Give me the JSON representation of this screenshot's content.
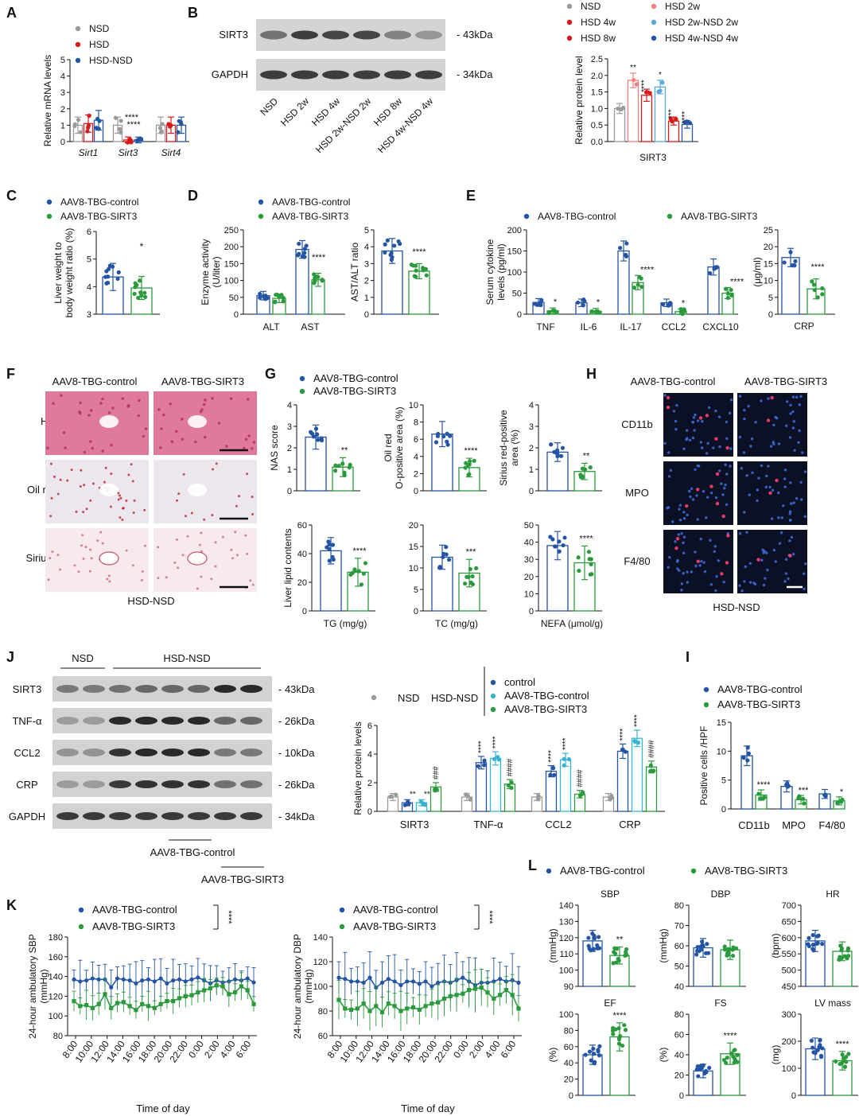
{
  "colors": {
    "nsd": "#9a9a9a",
    "hsd": "#d7191c",
    "hsd_nsd": "#2455a4",
    "control_blue": "#2455a4",
    "sirt3_green": "#2a9a3c",
    "hsd2w_pink": "#f08080",
    "hsd2w_nsd_lightblue": "#5aa9dc",
    "cyan": "#38b3cf",
    "he_stain": "#e07a9a",
    "oilred_bg": "#ece6ee",
    "sirius_bg": "#f6eaec",
    "if_bg": "#0b1024"
  },
  "panels": {
    "A": {
      "label": "A",
      "legend": [
        "NSD",
        "HSD",
        "HSD-NSD"
      ],
      "ylabel": "Relative mRNA  levels",
      "chart_data": {
        "type": "bar",
        "categories": [
          "Sirt1",
          "Sirt3",
          "Sirt4"
        ],
        "series": [
          {
            "name": "NSD",
            "values": [
              1.0,
              1.0,
              1.0
            ]
          },
          {
            "name": "HSD",
            "values": [
              1.1,
              0.1,
              1.0
            ]
          },
          {
            "name": "HSD-NSD",
            "values": [
              1.3,
              0.1,
              1.0
            ]
          }
        ],
        "ylim": [
          0,
          5
        ],
        "yticks": [
          "0",
          "1",
          "2",
          "3",
          "4",
          "5"
        ],
        "annotations": [
          "****",
          "****"
        ]
      }
    },
    "B": {
      "label": "B",
      "blot": {
        "rows": [
          "SIRT3",
          "GAPDH"
        ],
        "sizes": [
          "43kDa",
          "34kDa"
        ],
        "lanes": [
          "NSD",
          "HSD 2w",
          "HSD 4w",
          "HSD 2w-NSD 2w",
          "HSD 8w",
          "HSD 4w-NSD 4w"
        ]
      },
      "legend": [
        "NSD",
        "HSD 2w",
        "HSD 4w",
        "HSD 2w-NSD 2w",
        "HSD 8w",
        "HSD 4w-NSD 4w"
      ],
      "ylabel": "Relative protein level",
      "chart_data": {
        "type": "bar",
        "categories": [
          "NSD",
          "HSD 2w",
          "HSD 4w",
          "HSD 2w-NSD 2w",
          "HSD 8w",
          "HSD 4w-NSD 4w"
        ],
        "values": [
          1.0,
          1.85,
          1.4,
          1.65,
          0.62,
          0.52
        ],
        "xlabel": "SIRT3",
        "ylim": [
          0,
          2.5
        ],
        "yticks": [
          "0.0",
          "0.5",
          "1.0",
          "1.5",
          "2.0",
          "2.5"
        ],
        "annotations": [
          "",
          "**",
          "****",
          "*",
          "***",
          "****"
        ]
      }
    },
    "C": {
      "label": "C",
      "legend": [
        "AAV8-TBG-control",
        "AAV8-TBG-SIRT3"
      ],
      "ylabel": [
        "Liver weight to",
        "body weight ratio (%)"
      ],
      "chart_data": {
        "type": "bar",
        "categories": [
          "AAV8-TBG-control",
          "AAV8-TBG-SIRT3"
        ],
        "values": [
          4.35,
          3.95
        ],
        "ylim": [
          3,
          6
        ],
        "yticks": [
          "3",
          "4",
          "5",
          "6"
        ],
        "annotation": "*"
      }
    },
    "D": {
      "label": "D",
      "legend": [
        "AAV8-TBG-control",
        "AAV8-TBG-SIRT3"
      ],
      "ylabel": [
        "Enzyme activity",
        "(U/liter)"
      ],
      "chart_data": [
        {
          "type": "bar",
          "categories": [
            "ALT",
            "AST"
          ],
          "series": [
            {
              "name": "AAV8-TBG-control",
              "values": [
                55,
                192
              ]
            },
            {
              "name": "AAV8-TBG-SIRT3",
              "values": [
                47,
                102
              ]
            }
          ],
          "ylim": [
            0,
            250
          ],
          "yticks": [
            "0",
            "50",
            "100",
            "150",
            "200",
            "250"
          ],
          "annotation": "****"
        },
        {
          "type": "bar",
          "categories": [
            "AAV8-TBG-control",
            "AAV8-TBG-SIRT3"
          ],
          "values": [
            3.75,
            2.55
          ],
          "ylabel": "AST/ALT ratio",
          "ylim": [
            0,
            5
          ],
          "yticks": [
            "0",
            "1",
            "2",
            "3",
            "4",
            "5"
          ],
          "annotation": "****"
        }
      ]
    },
    "E": {
      "label": "E",
      "legend": [
        "AAV8-TBG-control",
        "AAV8-TBG-SIRT3"
      ],
      "ylabel": [
        "Serum cytokine",
        "levels (pg/ml)"
      ],
      "chart_data": [
        {
          "type": "bar",
          "categories": [
            "TNF",
            "IL-6",
            "IL-17",
            "CCL2",
            "CXCL10"
          ],
          "series": [
            {
              "name": "AAV8-TBG-control",
              "values": [
                28,
                27,
                150,
                27,
                112
              ]
            },
            {
              "name": "AAV8-TBG-SIRT3",
              "values": [
                8,
                7,
                75,
                6,
                50
              ]
            }
          ],
          "ylim": [
            0,
            200
          ],
          "yticks": [
            "0",
            "50",
            "100",
            "150",
            "200"
          ],
          "annotations": [
            "*",
            "*",
            "****",
            "*",
            "****"
          ]
        },
        {
          "type": "bar",
          "categories": [
            "AAV8-TBG-control",
            "AAV8-TBG-SIRT3"
          ],
          "values": [
            16.8,
            7.5
          ],
          "xlabel": "CRP",
          "ylabel": "(μg/ml)",
          "ylim": [
            0,
            25
          ],
          "yticks": [
            "0",
            "5",
            "10",
            "15",
            "20",
            "25"
          ],
          "annotation": "****"
        }
      ]
    },
    "F": {
      "label": "F",
      "columns": [
        "AAV8-TBG-control",
        "AAV8-TBG-SIRT3"
      ],
      "rows": [
        "HE",
        "Oil red O",
        "Sirius red"
      ],
      "caption": "HSD-NSD"
    },
    "G": {
      "label": "G",
      "legend": [
        "AAV8-TBG-control",
        "AAV8-TBG-SIRT3"
      ],
      "chart_data": [
        {
          "type": "bar",
          "ylabel": "NAS score",
          "values": [
            2.5,
            1.1
          ],
          "ylim": [
            0,
            4
          ],
          "yticks": [
            "0",
            "1",
            "2",
            "3",
            "4"
          ],
          "annotation": "**"
        },
        {
          "type": "bar",
          "ylabel": [
            "Oil red",
            "O-positive area (%)"
          ],
          "values": [
            6.6,
            2.7
          ],
          "ylim": [
            0,
            10
          ],
          "yticks": [
            "0",
            "2",
            "4",
            "6",
            "8",
            "10"
          ],
          "annotation": "****"
        },
        {
          "type": "bar",
          "ylabel": [
            "Sirius red-positive",
            "area (%)"
          ],
          "values": [
            1.8,
            0.9
          ],
          "ylim": [
            0,
            4
          ],
          "yticks": [
            "0",
            "1",
            "2",
            "3",
            "4"
          ],
          "annotation": "**"
        },
        {
          "type": "bar",
          "ylabel": "Liver lipid contents",
          "xlabel": "TG (mg/g)",
          "values": [
            42,
            27
          ],
          "ylim": [
            0,
            60
          ],
          "yticks": [
            "0",
            "20",
            "40",
            "60"
          ],
          "annotation": "****"
        },
        {
          "type": "bar",
          "xlabel": "TC (mg/g)",
          "values": [
            12.5,
            8.8
          ],
          "ylim": [
            0,
            20
          ],
          "yticks": [
            "0",
            "5",
            "10",
            "15",
            "20"
          ],
          "annotation": "***"
        },
        {
          "type": "bar",
          "xlabel": "NEFA (μmol/g)",
          "values": [
            38,
            28
          ],
          "ylim": [
            0,
            50
          ],
          "yticks": [
            "0",
            "10",
            "20",
            "30",
            "40",
            "50"
          ],
          "annotation": "****"
        }
      ]
    },
    "H": {
      "label": "H",
      "columns": [
        "AAV8-TBG-control",
        "AAV8-TBG-SIRT3"
      ],
      "rows": [
        "CD11b",
        "MPO",
        "F4/80"
      ],
      "caption": "HSD-NSD"
    },
    "I": {
      "label": "I",
      "legend": [
        "AAV8-TBG-control",
        "AAV8-TBG-SIRT3"
      ],
      "ylabel": "Positive cells /HPF",
      "chart_data": {
        "type": "bar",
        "categories": [
          "CD11b",
          "MPO",
          "F4/80"
        ],
        "series": [
          {
            "name": "AAV8-TBG-control",
            "values": [
              9.2,
              3.9,
              2.6
            ]
          },
          {
            "name": "AAV8-TBG-SIRT3",
            "values": [
              2.4,
              1.6,
              1.4
            ]
          }
        ],
        "ylim": [
          0,
          15
        ],
        "yticks": [
          "0",
          "5",
          "10",
          "15"
        ],
        "annotations": [
          "****",
          "***",
          "*"
        ]
      }
    },
    "J": {
      "label": "J",
      "blot": {
        "groups": [
          "NSD",
          "HSD-NSD"
        ],
        "rows": [
          "SIRT3",
          "TNF-α",
          "CCL2",
          "CRP",
          "GAPDH"
        ],
        "sizes": [
          "43kDa",
          "26kDa",
          "10kDa",
          "26kDa",
          "34kDa"
        ],
        "bottom_labels": [
          "AAV8-TBG-control",
          "AAV8-TBG-SIRT3"
        ]
      },
      "legend_left": [
        "NSD",
        "HSD-NSD"
      ],
      "legend": [
        "control",
        "AAV8-TBG-control",
        "AAV8-TBG-SIRT3"
      ],
      "ylabel": "Relative protein levels",
      "chart_data": {
        "type": "bar",
        "categories": [
          "SIRT3",
          "TNF-α",
          "CCL2",
          "CRP"
        ],
        "series": [
          {
            "name": "NSD",
            "values": [
              1.0,
              1.0,
              1.0,
              1.0
            ]
          },
          {
            "name": "control",
            "values": [
              0.6,
              3.4,
              2.8,
              4.2
            ]
          },
          {
            "name": "AAV8-TBG-control",
            "values": [
              0.6,
              3.7,
              3.6,
              5.1
            ]
          },
          {
            "name": "AAV8-TBG-SIRT3",
            "values": [
              1.7,
              1.9,
              1.2,
              3.1
            ]
          }
        ],
        "ylim": [
          0,
          6
        ],
        "yticks": [
          "0",
          "2",
          "4",
          "6"
        ],
        "annotations": [
          [
            "**",
            "**",
            "###"
          ],
          [
            "****",
            "****",
            "####"
          ],
          [
            "****",
            "****",
            "####"
          ],
          [
            "****",
            "****",
            "####"
          ]
        ]
      }
    },
    "K": {
      "label": "K",
      "legend": [
        "AAV8-TBG-control",
        "AAV8-TBG-SIRT3"
      ],
      "sig": "****",
      "xlabel": "Time of day",
      "xticks": [
        "8:00",
        "10:00",
        "12:00",
        "14:00",
        "16:00",
        "18:00",
        "20:00",
        "22:00",
        "0:00",
        "2:00",
        "4:00",
        "6:00"
      ],
      "chart_data": [
        {
          "type": "line",
          "ylabel": [
            "24-hour ambulatory SBP",
            "(mmHg)"
          ],
          "ylim": [
            80,
            180
          ],
          "yticks": [
            "80",
            "100",
            "120",
            "140",
            "160",
            "180"
          ],
          "series": [
            {
              "name": "AAV8-TBG-control",
              "values": [
                137,
                135,
                136,
                138,
                137,
                137,
                129,
                138,
                137,
                136,
                133,
                136,
                137,
                135,
                138,
                133,
                136,
                137,
                135,
                137,
                139,
                136,
                133,
                136,
                134,
                135,
                137,
                136,
                138,
                134
              ]
            },
            {
              "name": "AAV8-TBG-SIRT3",
              "values": [
                115,
                110,
                111,
                108,
                112,
                122,
                108,
                113,
                114,
                110,
                106,
                112,
                110,
                108,
                112,
                115,
                115,
                118,
                120,
                121,
                124,
                126,
                128,
                131,
                130,
                122,
                124,
                130,
                126,
                112
              ]
            }
          ]
        },
        {
          "type": "line",
          "ylabel": [
            "24-hour ambulatory DBP",
            "(mmHg)"
          ],
          "ylim": [
            60,
            140
          ],
          "yticks": [
            "60",
            "80",
            "100",
            "120",
            "140"
          ],
          "series": [
            {
              "name": "AAV8-TBG-control",
              "values": [
                107,
                106,
                104,
                104,
                103,
                107,
                99,
                103,
                106,
                104,
                101,
                104,
                104,
                102,
                104,
                100,
                103,
                104,
                103,
                105,
                107,
                104,
                101,
                103,
                103,
                104,
                106,
                104,
                105,
                103
              ]
            },
            {
              "name": "AAV8-TBG-SIRT3",
              "values": [
                89,
                82,
                81,
                82,
                86,
                80,
                84,
                79,
                86,
                84,
                80,
                82,
                83,
                81,
                84,
                86,
                87,
                90,
                92,
                93,
                94,
                97,
                98,
                99,
                95,
                90,
                93,
                97,
                93,
                82
              ]
            }
          ]
        }
      ]
    },
    "L": {
      "label": "L",
      "legend": [
        "AAV8-TBG-control",
        "AAV8-TBG-SIRT3"
      ],
      "chart_data": [
        {
          "type": "bar",
          "title": "SBP",
          "ylabel": "(mmHg)",
          "values": [
            118,
            109
          ],
          "ylim": [
            90,
            140
          ],
          "yticks": [
            "90",
            "100",
            "110",
            "120",
            "130",
            "140"
          ],
          "annotation": "**"
        },
        {
          "type": "bar",
          "title": "DBP",
          "ylabel": "(mmHg)",
          "values": [
            59,
            58
          ],
          "ylim": [
            40,
            80
          ],
          "yticks": [
            "40",
            "50",
            "60",
            "70",
            "80"
          ],
          "annotation": ""
        },
        {
          "type": "bar",
          "title": "HR",
          "ylabel": "(bpm)",
          "values": [
            590,
            558
          ],
          "ylim": [
            450,
            700
          ],
          "yticks": [
            "450",
            "500",
            "550",
            "600",
            "650",
            "700"
          ],
          "annotation": ""
        },
        {
          "type": "bar",
          "title": "EF",
          "ylabel": "(%)",
          "values": [
            50,
            72
          ],
          "ylim": [
            0,
            100
          ],
          "yticks": [
            "0",
            "20",
            "40",
            "60",
            "80",
            "100"
          ],
          "annotation": "****"
        },
        {
          "type": "bar",
          "title": "FS",
          "ylabel": "(%)",
          "values": [
            24,
            41
          ],
          "ylim": [
            0,
            80
          ],
          "yticks": [
            "0",
            "20",
            "40",
            "60",
            "80"
          ],
          "annotation": "****"
        },
        {
          "type": "bar",
          "title": "LV mass",
          "ylabel": "(mg)",
          "values": [
            172,
            128
          ],
          "ylim": [
            0,
            300
          ],
          "yticks": [
            "0",
            "100",
            "200",
            "300"
          ],
          "annotation": "****"
        }
      ]
    }
  }
}
